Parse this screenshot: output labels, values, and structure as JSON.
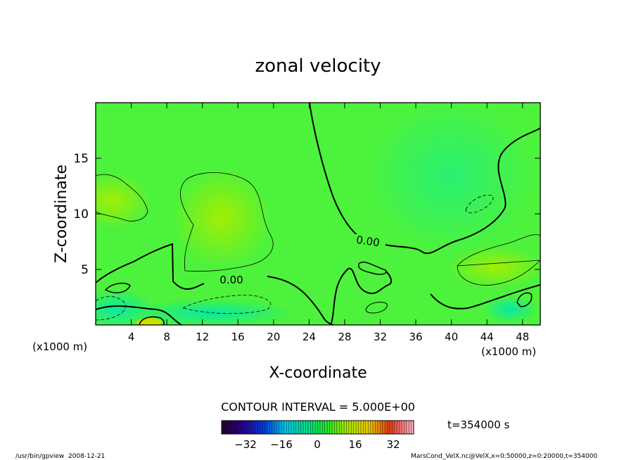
{
  "chart_data": {
    "type": "heatmap",
    "title": "zonal velocity",
    "xlabel": "X-coordinate",
    "ylabel": "Z-coordinate",
    "x_unit": "(x1000 m)",
    "z_unit": "(x1000 m)",
    "xlim": [
      0,
      50
    ],
    "zlim": [
      0,
      20
    ],
    "x_ticks": [
      "4",
      "8",
      "12",
      "16",
      "20",
      "24",
      "28",
      "32",
      "36",
      "40",
      "44",
      "48"
    ],
    "z_ticks": [
      "5",
      "10",
      "15"
    ],
    "contour_label": "0.00",
    "contour_interval_text": "CONTOUR INTERVAL = 5.000E+00",
    "time_text": "t=354000 s",
    "colorbar": {
      "range": [
        -40,
        40
      ],
      "ticks": [
        "−32",
        "−16",
        "0",
        "16",
        "32"
      ]
    }
  },
  "footer": {
    "left": "/usr/bin/gpview  2008-12-21",
    "right": "MarsCond_VelX.nc@VelX,x=0:50000,z=0:20000,t=354000"
  },
  "colors": {
    "field_base": "#4df23c",
    "positive_high": "#9cf000",
    "negative_low": "#00e8a0"
  }
}
